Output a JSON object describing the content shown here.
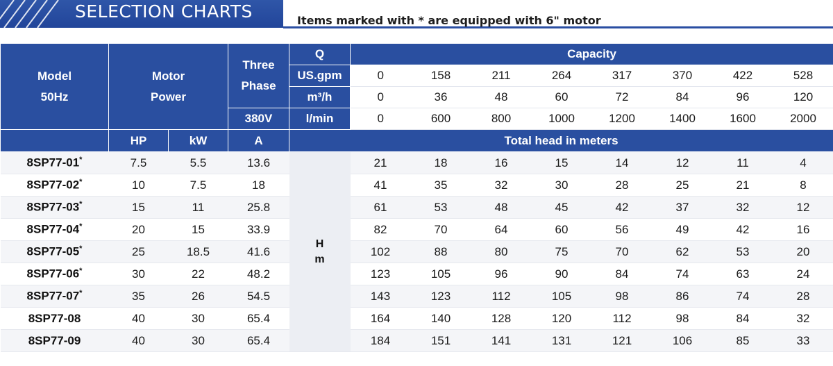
{
  "header": {
    "title": "SELECTION CHARTS",
    "note": "Items marked with * are equipped with 6\" motor"
  },
  "table": {
    "model_label": [
      "Model",
      "50Hz"
    ],
    "motor_label": [
      "Motor",
      "Power"
    ],
    "phase_label": [
      "Three",
      "Phase"
    ],
    "voltage_label": "380V",
    "q_label": "Q",
    "capacity_label": "Capacity",
    "unit_labels": [
      "US.gpm",
      "m³/h",
      "l/min"
    ],
    "capacity_values": [
      [
        "0",
        "158",
        "211",
        "264",
        "317",
        "370",
        "422",
        "528"
      ],
      [
        "0",
        "36",
        "48",
        "60",
        "72",
        "84",
        "96",
        "120"
      ],
      [
        "0",
        "600",
        "800",
        "1000",
        "1200",
        "1400",
        "1600",
        "2000"
      ]
    ],
    "hp_label": "HP",
    "kw_label": "kW",
    "a_label": "A",
    "head_label": "Total head in meters",
    "hm_label": [
      "H",
      "m"
    ],
    "rows": [
      {
        "model": "8SP77-01",
        "mark": "*",
        "hp": "7.5",
        "kw": "5.5",
        "a": "13.6",
        "heads": [
          "21",
          "18",
          "16",
          "15",
          "14",
          "12",
          "11",
          "4"
        ]
      },
      {
        "model": "8SP77-02",
        "mark": "*",
        "hp": "10",
        "kw": "7.5",
        "a": "18",
        "heads": [
          "41",
          "35",
          "32",
          "30",
          "28",
          "25",
          "21",
          "8"
        ]
      },
      {
        "model": "8SP77-03",
        "mark": "*",
        "hp": "15",
        "kw": "11",
        "a": "25.8",
        "heads": [
          "61",
          "53",
          "48",
          "45",
          "42",
          "37",
          "32",
          "12"
        ]
      },
      {
        "model": "8SP77-04",
        "mark": "*",
        "hp": "20",
        "kw": "15",
        "a": "33.9",
        "heads": [
          "82",
          "70",
          "64",
          "60",
          "56",
          "49",
          "42",
          "16"
        ]
      },
      {
        "model": "8SP77-05",
        "mark": "*",
        "hp": "25",
        "kw": "18.5",
        "a": "41.6",
        "heads": [
          "102",
          "88",
          "80",
          "75",
          "70",
          "62",
          "53",
          "20"
        ]
      },
      {
        "model": "8SP77-06",
        "mark": "*",
        "hp": "30",
        "kw": "22",
        "a": "48.2",
        "heads": [
          "123",
          "105",
          "96",
          "90",
          "84",
          "74",
          "63",
          "24"
        ]
      },
      {
        "model": "8SP77-07",
        "mark": "*",
        "hp": "35",
        "kw": "26",
        "a": "54.5",
        "heads": [
          "143",
          "123",
          "112",
          "105",
          "98",
          "86",
          "74",
          "28"
        ]
      },
      {
        "model": "8SP77-08",
        "mark": "",
        "hp": "40",
        "kw": "30",
        "a": "65.4",
        "heads": [
          "164",
          "140",
          "128",
          "120",
          "112",
          "98",
          "84",
          "32"
        ]
      },
      {
        "model": "8SP77-09",
        "mark": "",
        "hp": "40",
        "kw": "30",
        "a": "65.4",
        "heads": [
          "184",
          "151",
          "141",
          "131",
          "121",
          "106",
          "85",
          "33"
        ]
      }
    ]
  },
  "colors": {
    "header_blue": "#2a4fa0",
    "banner_blue": "#22459a"
  }
}
